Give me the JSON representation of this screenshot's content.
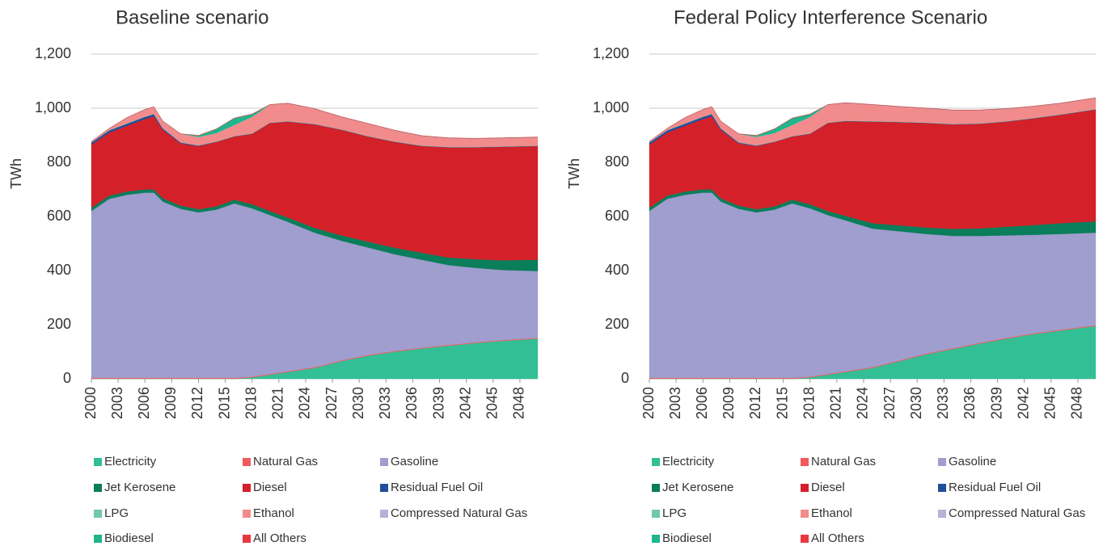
{
  "chart_data": [
    {
      "type": "stacked_area",
      "title": "Baseline scenario",
      "y_label": "TWh",
      "x": [
        2000,
        2002,
        2004,
        2006,
        2007,
        2008,
        2010,
        2012,
        2014,
        2016,
        2018,
        2020,
        2022,
        2025,
        2028,
        2031,
        2034,
        2037,
        2040,
        2043,
        2046,
        2050
      ],
      "xlim": [
        2000,
        2050
      ],
      "xticks": [
        2000,
        2003,
        2006,
        2009,
        2012,
        2015,
        2018,
        2021,
        2024,
        2027,
        2030,
        2033,
        2036,
        2039,
        2042,
        2045,
        2048
      ],
      "ylim": [
        0,
        1200
      ],
      "yticks": [
        0,
        200,
        400,
        600,
        800,
        {
          "value": 1000,
          "label": "1,000"
        },
        {
          "value": 1200,
          "label": "1,200"
        }
      ],
      "grid": true,
      "series": [
        {
          "name": "Electricity",
          "color": "#33bf96",
          "values": [
            0,
            0,
            0,
            0,
            0,
            0,
            0,
            0,
            0,
            0,
            5,
            15,
            25,
            40,
            65,
            85,
            100,
            112,
            122,
            132,
            140,
            148
          ]
        },
        {
          "name": "Natural Gas",
          "color": "#ef5b5b",
          "values": [
            3,
            3,
            3,
            3,
            3,
            3,
            3,
            3,
            3,
            3,
            3,
            3,
            3,
            3,
            3,
            3,
            3,
            3,
            3,
            3,
            3,
            3
          ]
        },
        {
          "name": "Gasoline",
          "color": "#a09dcf",
          "values": [
            617,
            662,
            677,
            685,
            685,
            652,
            625,
            612,
            622,
            645,
            622,
            587,
            552,
            497,
            442,
            397,
            357,
            325,
            295,
            275,
            259,
            247
          ]
        },
        {
          "name": "Jet Kerosene",
          "color": "#0a7d5a",
          "values": [
            12,
            12,
            12,
            12,
            12,
            12,
            12,
            12,
            12,
            14,
            15,
            15,
            16,
            18,
            20,
            22,
            24,
            26,
            28,
            32,
            36,
            42
          ]
        },
        {
          "name": "Diesel",
          "color": "#d42028",
          "values": [
            233,
            233,
            243,
            260,
            270,
            253,
            230,
            233,
            238,
            233,
            260,
            325,
            354,
            382,
            390,
            388,
            391,
            394,
            407,
            413,
            419,
            420
          ]
        },
        {
          "name": "Residual Fuel Oil",
          "color": "#1f4e9c",
          "values": [
            8,
            8,
            8,
            8,
            8,
            5,
            3,
            2,
            1,
            1,
            1,
            1,
            1,
            1,
            1,
            1,
            1,
            1,
            1,
            1,
            1,
            1
          ]
        },
        {
          "name": "LPG",
          "color": "#6fcaa8",
          "values": [
            1,
            1,
            1,
            1,
            1,
            1,
            1,
            1,
            1,
            1,
            1,
            1,
            1,
            1,
            1,
            1,
            1,
            1,
            1,
            1,
            1,
            1
          ]
        },
        {
          "name": "Ethanol",
          "color": "#f28b8b",
          "values": [
            2,
            5,
            20,
            25,
            25,
            25,
            30,
            30,
            30,
            40,
            60,
            65,
            65,
            55,
            45,
            45,
            40,
            35,
            32,
            30,
            30,
            30
          ]
        },
        {
          "name": "Compressed Natural Gas",
          "color": "#b3b2d8",
          "values": [
            1,
            1,
            1,
            1,
            1,
            1,
            1,
            1,
            1,
            1,
            1,
            1,
            1,
            1,
            1,
            1,
            1,
            1,
            1,
            1,
            1,
            1
          ]
        },
        {
          "name": "Biodiesel",
          "color": "#20b58a",
          "values": [
            0,
            0,
            0,
            0,
            0,
            0,
            0,
            5,
            15,
            25,
            10,
            0,
            0,
            0,
            0,
            0,
            0,
            0,
            0,
            0,
            0,
            0
          ]
        },
        {
          "name": "All Others",
          "color": "#e8383d",
          "values": [
            1,
            1,
            1,
            1,
            1,
            1,
            1,
            1,
            1,
            1,
            1,
            1,
            1,
            1,
            1,
            1,
            1,
            1,
            1,
            1,
            1,
            1
          ]
        }
      ]
    },
    {
      "type": "stacked_area",
      "title": "Federal Policy Interference Scenario",
      "y_label": "TWh",
      "x": [
        2000,
        2002,
        2004,
        2006,
        2007,
        2008,
        2010,
        2012,
        2014,
        2016,
        2018,
        2020,
        2022,
        2025,
        2028,
        2031,
        2034,
        2037,
        2040,
        2043,
        2046,
        2050
      ],
      "xlim": [
        2000,
        2050
      ],
      "xticks": [
        2000,
        2003,
        2006,
        2009,
        2012,
        2015,
        2018,
        2021,
        2024,
        2027,
        2030,
        2033,
        2036,
        2039,
        2042,
        2045,
        2048
      ],
      "ylim": [
        0,
        1200
      ],
      "yticks": [
        0,
        200,
        400,
        600,
        800,
        {
          "value": 1000,
          "label": "1,000"
        },
        {
          "value": 1200,
          "label": "1,200"
        }
      ],
      "grid": true,
      "series": [
        {
          "name": "Electricity",
          "color": "#33bf96",
          "values": [
            0,
            0,
            0,
            0,
            0,
            0,
            0,
            0,
            0,
            0,
            5,
            15,
            25,
            40,
            65,
            90,
            110,
            130,
            148,
            165,
            178,
            195
          ]
        },
        {
          "name": "Natural Gas",
          "color": "#ef5b5b",
          "values": [
            3,
            3,
            3,
            3,
            3,
            3,
            3,
            3,
            3,
            3,
            3,
            3,
            3,
            3,
            3,
            3,
            3,
            3,
            3,
            3,
            3,
            3
          ]
        },
        {
          "name": "Gasoline",
          "color": "#a09dcf",
          "values": [
            617,
            662,
            677,
            685,
            685,
            652,
            625,
            612,
            622,
            645,
            622,
            587,
            557,
            512,
            477,
            442,
            415,
            395,
            379,
            364,
            354,
            342
          ]
        },
        {
          "name": "Jet Kerosene",
          "color": "#0a7d5a",
          "values": [
            12,
            12,
            12,
            12,
            12,
            12,
            12,
            12,
            12,
            14,
            15,
            15,
            17,
            20,
            22,
            24,
            26,
            28,
            32,
            36,
            40,
            42
          ]
        },
        {
          "name": "Diesel",
          "color": "#d42028",
          "values": [
            233,
            233,
            243,
            260,
            270,
            253,
            230,
            233,
            238,
            233,
            260,
            325,
            350,
            375,
            381,
            386,
            386,
            386,
            388,
            394,
            400,
            413
          ]
        },
        {
          "name": "Residual Fuel Oil",
          "color": "#1f4e9c",
          "values": [
            8,
            8,
            8,
            8,
            8,
            5,
            3,
            2,
            1,
            1,
            1,
            1,
            1,
            1,
            1,
            1,
            1,
            1,
            1,
            1,
            1,
            1
          ]
        },
        {
          "name": "LPG",
          "color": "#6fcaa8",
          "values": [
            1,
            1,
            1,
            1,
            1,
            1,
            1,
            1,
            1,
            1,
            1,
            1,
            1,
            1,
            1,
            1,
            1,
            1,
            1,
            1,
            1,
            1
          ]
        },
        {
          "name": "Ethanol",
          "color": "#f28b8b",
          "values": [
            2,
            5,
            20,
            25,
            25,
            25,
            30,
            30,
            30,
            40,
            60,
            65,
            65,
            60,
            55,
            52,
            50,
            48,
            45,
            42,
            40,
            40
          ]
        },
        {
          "name": "Compressed Natural Gas",
          "color": "#b3b2d8",
          "values": [
            1,
            1,
            1,
            1,
            1,
            1,
            1,
            1,
            1,
            1,
            1,
            1,
            1,
            1,
            1,
            1,
            1,
            1,
            1,
            1,
            1,
            1
          ]
        },
        {
          "name": "Biodiesel",
          "color": "#20b58a",
          "values": [
            0,
            0,
            0,
            0,
            0,
            0,
            0,
            5,
            15,
            25,
            10,
            0,
            0,
            0,
            0,
            0,
            0,
            0,
            0,
            0,
            0,
            0
          ]
        },
        {
          "name": "All Others",
          "color": "#e8383d",
          "values": [
            1,
            1,
            1,
            1,
            1,
            1,
            1,
            1,
            1,
            1,
            1,
            1,
            1,
            1,
            1,
            1,
            1,
            1,
            1,
            1,
            1,
            1
          ]
        }
      ]
    }
  ]
}
